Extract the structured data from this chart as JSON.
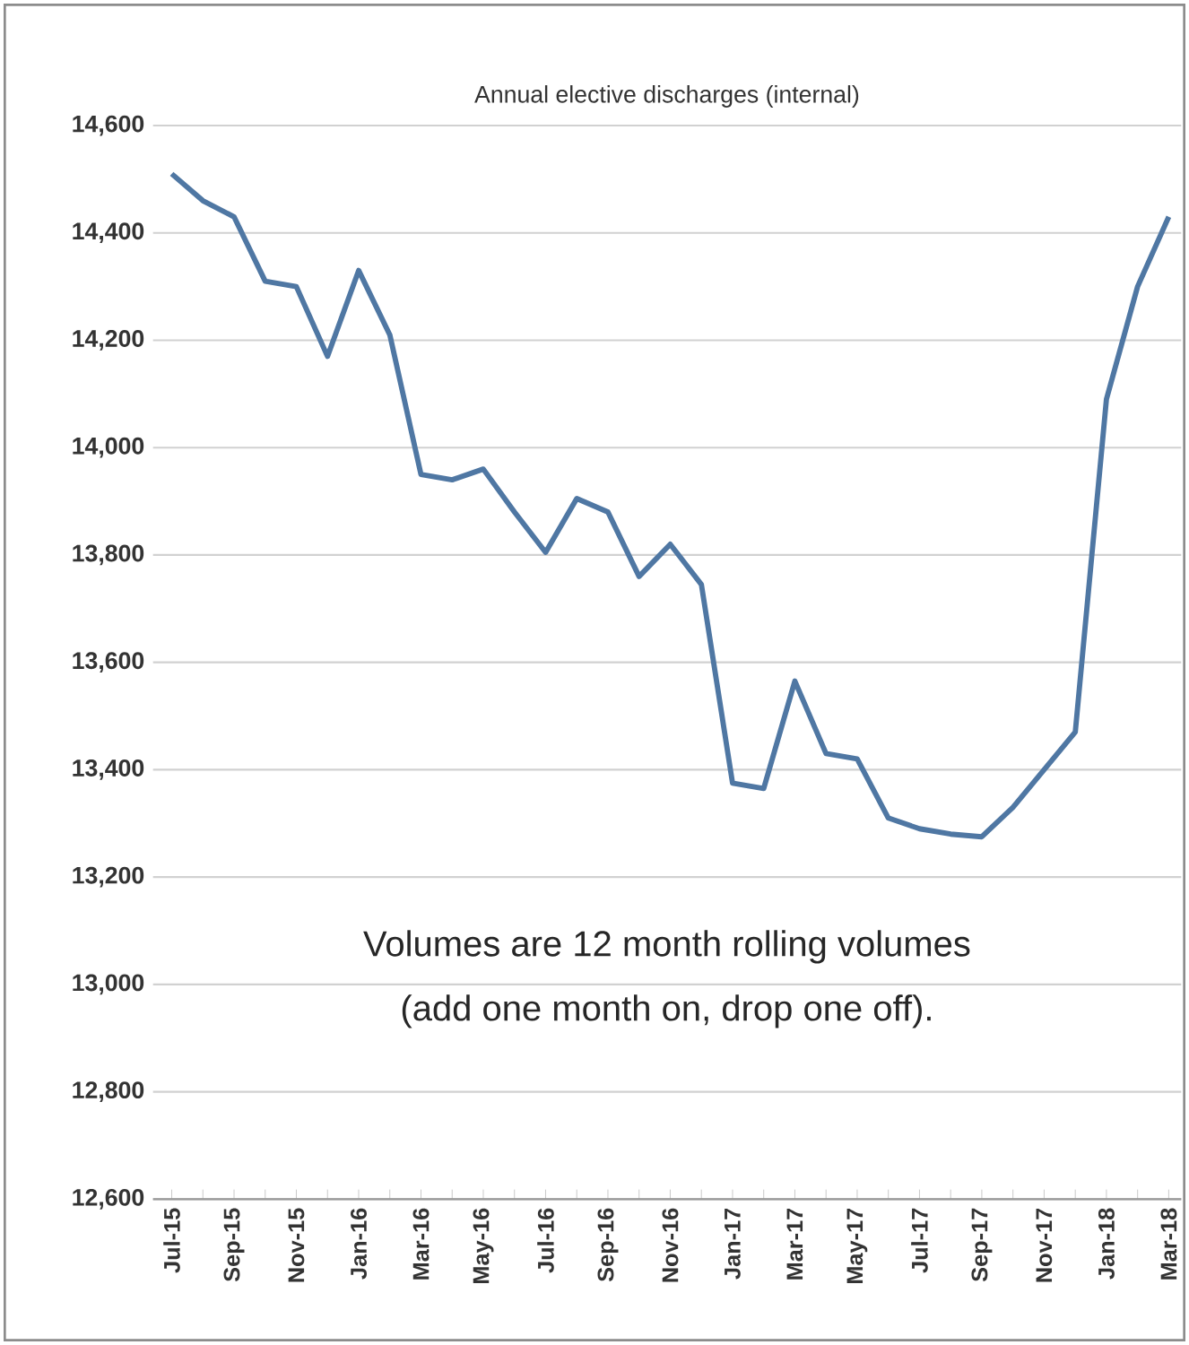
{
  "chart_data": {
    "type": "line",
    "title": "Annual elective discharges (internal)",
    "categories": [
      "Jul-15",
      null,
      "Sep-15",
      null,
      "Nov-15",
      null,
      "Jan-16",
      null,
      "Mar-16",
      null,
      "May-16",
      null,
      "Jul-16",
      null,
      "Sep-16",
      null,
      "Nov-16",
      null,
      "Jan-17",
      null,
      "Mar-17",
      null,
      "May-17",
      null,
      "Jul-17",
      null,
      "Sep-17",
      null,
      "Nov-17",
      null,
      "Jan-18",
      null,
      "Mar-18"
    ],
    "series": [
      {
        "color": "#4f77a3",
        "values": [
          14510,
          14460,
          14430,
          14310,
          14300,
          14170,
          14330,
          14210,
          13950,
          13940,
          13960,
          13880,
          13805,
          13905,
          13880,
          13760,
          13820,
          13745,
          13375,
          13365,
          13565,
          13430,
          13420,
          13310,
          13290,
          13280,
          13275,
          13330,
          13400,
          13470,
          14090,
          14300,
          14430
        ]
      }
    ],
    "ylim": [
      12600,
      14600
    ],
    "yticks": [
      {
        "value": 12600,
        "label": "12,600"
      },
      {
        "value": 12800,
        "label": "12,800"
      },
      {
        "value": 13000,
        "label": "13,000"
      },
      {
        "value": 13200,
        "label": "13,200"
      },
      {
        "value": 13400,
        "label": "13,400"
      },
      {
        "value": 13600,
        "label": "13,600"
      },
      {
        "value": 13800,
        "label": "13,800"
      },
      {
        "value": 14000,
        "label": "14,000"
      },
      {
        "value": 14200,
        "label": "14,200"
      },
      {
        "value": 14400,
        "label": "14,400"
      },
      {
        "value": 14600,
        "label": "14,600"
      }
    ],
    "grid": "y",
    "marker": "none",
    "line_style": "solid",
    "annotations": [
      "Volumes are 12 month rolling volumes",
      "(add one month on, drop one off)."
    ]
  }
}
